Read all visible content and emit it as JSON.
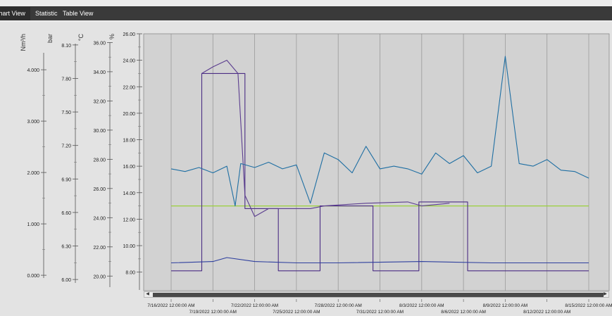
{
  "tabs": [
    {
      "label": "Chart View",
      "active": true
    },
    {
      "label": "Statistic",
      "active": false
    },
    {
      "label": "Table View",
      "active": false
    }
  ],
  "chart_data": {
    "type": "line",
    "grid": true,
    "colors": {
      "blue_line": "#1f6fa3",
      "purple_line": "#5b3d8f",
      "navy_line": "#2e3f9e",
      "green_line": "#9bd03b",
      "step_line": "#4b2d84"
    },
    "axes": [
      {
        "unit": "Nm³/h",
        "ticks": [
          "0.000",
          "1.000",
          "2.000",
          "3.000",
          "4.000"
        ],
        "range": [
          -0.3,
          4.7
        ]
      },
      {
        "unit": "bar",
        "ticks": [
          "6.00",
          "6.30",
          "6.60",
          "6.90",
          "7.20",
          "7.50",
          "7.80",
          "8.10"
        ],
        "range": [
          5.9,
          8.2
        ]
      },
      {
        "unit": "°C",
        "ticks": [
          "20.00",
          "22.00",
          "24.00",
          "26.00",
          "28.00",
          "30.00",
          "32.00",
          "34.00",
          "36.00"
        ],
        "range": [
          19.0,
          36.6
        ]
      },
      {
        "unit": "%",
        "ticks": [
          "8.00",
          "10.00",
          "12.00",
          "14.00",
          "16.00",
          "18.00",
          "20.00",
          "22.00",
          "24.00",
          "26.00"
        ],
        "range": [
          6.6,
          26.0
        ]
      }
    ],
    "x_ticks_row1": [
      "7/16/2022 12:00:00 AM",
      "7/22/2022 12:00:00 AM",
      "7/28/2022 12:00:00 AM",
      "8/3/2022 12:00:00 AM",
      "8/9/2022 12:00:00 AM",
      "8/15/2022 12:00:00 AM"
    ],
    "x_ticks_row2": [
      "7/19/2022 12:00:00 AM",
      "7/25/2022 12:00:00 AM",
      "7/31/2022 12:00:00 AM",
      "8/6/2022 12:00:00 AM",
      "8/12/2022 12:00:00 AM"
    ],
    "x_range": [
      "2022-07-16",
      "2022-08-15"
    ],
    "series": [
      {
        "key": "blue",
        "unit_axis": "%",
        "points": [
          [
            "2022-07-16",
            15.8
          ],
          [
            "2022-07-17",
            15.6
          ],
          [
            "2022-07-18",
            15.9
          ],
          [
            "2022-07-19",
            15.5
          ],
          [
            "2022-07-20",
            16.0
          ],
          [
            "2022-07-20.6",
            13.0
          ],
          [
            "2022-07-21",
            16.2
          ],
          [
            "2022-07-22",
            15.9
          ],
          [
            "2022-07-23",
            16.3
          ],
          [
            "2022-07-24",
            15.8
          ],
          [
            "2022-07-25",
            16.1
          ],
          [
            "2022-07-26",
            13.2
          ],
          [
            "2022-07-27",
            17.0
          ],
          [
            "2022-07-28",
            16.5
          ],
          [
            "2022-07-29",
            15.5
          ],
          [
            "2022-07-30",
            17.5
          ],
          [
            "2022-07-31",
            15.8
          ],
          [
            "2022-08-01",
            16.0
          ],
          [
            "2022-08-02",
            15.8
          ],
          [
            "2022-08-03",
            15.4
          ],
          [
            "2022-08-04",
            17.0
          ],
          [
            "2022-08-05",
            16.2
          ],
          [
            "2022-08-06",
            16.8
          ],
          [
            "2022-08-07",
            15.5
          ],
          [
            "2022-08-08",
            16.0
          ],
          [
            "2022-08-09",
            24.3
          ],
          [
            "2022-08-10",
            16.2
          ],
          [
            "2022-08-11",
            16.0
          ],
          [
            "2022-08-12",
            16.5
          ],
          [
            "2022-08-13",
            15.7
          ],
          [
            "2022-08-14",
            15.6
          ],
          [
            "2022-08-15",
            15.1
          ]
        ]
      },
      {
        "key": "purple",
        "unit_axis": "%",
        "points": [
          [
            "2022-07-18.2",
            23.0
          ],
          [
            "2022-07-19",
            23.5
          ],
          [
            "2022-07-20",
            24.0
          ],
          [
            "2022-07-20.8",
            23.0
          ],
          [
            "2022-07-21.3",
            13.8
          ],
          [
            "2022-07-22",
            12.2
          ],
          [
            "2022-07-23",
            12.8
          ],
          [
            "2022-07-26",
            12.8
          ],
          [
            "2022-07-27",
            13.0
          ],
          [
            "2022-07-30",
            13.2
          ],
          [
            "2022-08-02",
            13.3
          ],
          [
            "2022-08-03",
            13.0
          ],
          [
            "2022-08-05",
            13.2
          ]
        ]
      },
      {
        "key": "navy",
        "unit_axis": "%",
        "points": [
          [
            "2022-07-16",
            8.7
          ],
          [
            "2022-07-19",
            8.8
          ],
          [
            "2022-07-20",
            9.1
          ],
          [
            "2022-07-22",
            8.8
          ],
          [
            "2022-07-25",
            8.7
          ],
          [
            "2022-07-28",
            8.7
          ],
          [
            "2022-08-03",
            8.8
          ],
          [
            "2022-08-08",
            8.7
          ],
          [
            "2022-08-11",
            8.7
          ],
          [
            "2022-08-15",
            8.7
          ]
        ]
      },
      {
        "key": "green",
        "unit_axis": "%",
        "points": [
          [
            "2022-07-16",
            13.0
          ],
          [
            "2022-08-15",
            13.0
          ]
        ]
      },
      {
        "key": "step",
        "unit_axis": "%",
        "points": [
          [
            "2022-07-16",
            8.1
          ],
          [
            "2022-07-18.2",
            8.1
          ],
          [
            "2022-07-18.2",
            23.0
          ],
          [
            "2022-07-21.3",
            23.0
          ],
          [
            "2022-07-21.3",
            12.8
          ],
          [
            "2022-07-23.7",
            12.8
          ],
          [
            "2022-07-23.7",
            8.1
          ],
          [
            "2022-07-26.7",
            8.1
          ],
          [
            "2022-07-26.7",
            13.0
          ],
          [
            "2022-07-30.5",
            13.0
          ],
          [
            "2022-07-30.5",
            8.1
          ],
          [
            "2022-08-02.8",
            8.1
          ],
          [
            "2022-08-02.8",
            13.3
          ],
          [
            "2022-08-06.3",
            13.3
          ],
          [
            "2022-08-06.3",
            8.1
          ],
          [
            "2022-08-15",
            8.1
          ]
        ]
      }
    ]
  }
}
